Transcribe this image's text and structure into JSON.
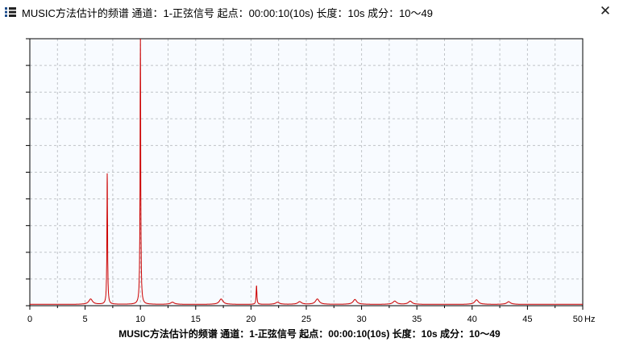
{
  "window": {
    "title": "MUSIC方法估计的频谱 通道：1-正弦信号 起点：00:00:10(10s) 长度：10s 成分：10～49",
    "icon": "list-icon",
    "close_icon": "close-icon"
  },
  "chart_data": {
    "type": "line",
    "title": "MUSIC方法估计的频谱 通道：1-正弦信号 起点：00:00:10(10s) 长度：10s 成分：10～49",
    "xlabel": "Hz",
    "ylabel": "",
    "xlim": [
      0,
      50
    ],
    "ylim": [
      0,
      1
    ],
    "x_ticks": [
      0,
      5,
      10,
      15,
      20,
      25,
      30,
      35,
      40,
      45,
      50
    ],
    "x_tick_labels": [
      "0",
      "5",
      "10",
      "15",
      "20",
      "25",
      "30",
      "35",
      "40",
      "45",
      "50"
    ],
    "y_tick_labels": [],
    "grid": true,
    "line_color": "#cc0000",
    "background": "#f8fbff",
    "baseline": 0.005,
    "peaks": [
      {
        "x": 5.5,
        "y": 0.02
      },
      {
        "x": 7.0,
        "y": 0.49
      },
      {
        "x": 10.0,
        "y": 1.0
      },
      {
        "x": 12.9,
        "y": 0.008
      },
      {
        "x": 17.3,
        "y": 0.02
      },
      {
        "x": 20.5,
        "y": 0.07
      },
      {
        "x": 22.4,
        "y": 0.008
      },
      {
        "x": 24.4,
        "y": 0.01
      },
      {
        "x": 26.0,
        "y": 0.02
      },
      {
        "x": 29.4,
        "y": 0.018
      },
      {
        "x": 33.0,
        "y": 0.012
      },
      {
        "x": 34.4,
        "y": 0.012
      },
      {
        "x": 40.4,
        "y": 0.017
      },
      {
        "x": 43.3,
        "y": 0.01
      }
    ]
  }
}
